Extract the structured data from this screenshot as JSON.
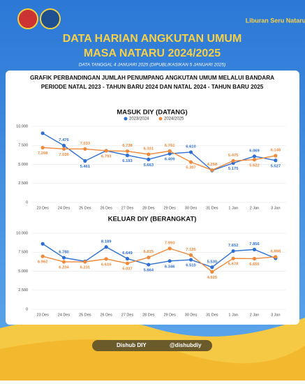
{
  "header": {
    "logo": "Liburan Seru Nataru",
    "title": "DATA HARIAN ANGKUTAN UMUM",
    "subtitle": "MASA NATARU 2024/2025",
    "date": "DATA TANGGAL 4 JANUARI 2025 (DIPUBLIKASIKAN 5 JANUARI 2025)"
  },
  "panel_title": [
    "GRAFIK PERBANDINGAN JUMLAH PENUMPANG ANGKUTAN UMUM MELALUI BANDARA",
    "PERIODE NATAL 2023 - TAHUN BARU 2024 DAN NATAL 2024 - TAHUN BARU 2025"
  ],
  "footer": {
    "facebook_youtube": "Dishub DIY",
    "twitter_instagram": "@dishubdiy"
  },
  "chart_data": [
    {
      "type": "line",
      "title": "MASUK DIY (DATANG)",
      "categories": [
        "23 Des",
        "24 Des",
        "25 Des",
        "26 Des",
        "27 Des",
        "28 Des",
        "29 Des",
        "30 Des",
        "31 Des",
        "1 Jan",
        "2 Jan",
        "3 Jan"
      ],
      "series": [
        {
          "name": "2023/2024",
          "color": "#2e6fd3",
          "values": [
            9100,
            7476,
            5461,
            6800,
            6193,
            5663,
            6409,
            6610,
            4200,
            5175,
            6069,
            5527
          ],
          "value_labels": [
            null,
            "7.476",
            "5.461",
            null,
            "6.193",
            "5.663",
            "6.409",
            "6.610",
            null,
            "5.175",
            "6.069",
            "5.527"
          ]
        },
        {
          "name": "2024/2025",
          "color": "#f0893a",
          "values": [
            7208,
            7036,
            7033,
            6793,
            6738,
            6331,
            6761,
            5307,
            4258,
            5475,
            5622,
            6148
          ],
          "value_labels": [
            "7.208",
            "7.036",
            "7.033",
            "6.793",
            "6.738",
            "6.331",
            "6.761",
            "5.307",
            "4.258",
            "5.475",
            "5.622",
            "6.148"
          ]
        }
      ],
      "ylim": [
        0,
        10000
      ],
      "yticks": [
        0,
        {
          "value": 2500,
          "label": "2.500"
        },
        {
          "value": 5000,
          "label": "5.000"
        },
        {
          "value": 7500,
          "label": "7.500"
        },
        {
          "value": 10000,
          "label": "10.000"
        }
      ],
      "grid": true
    },
    {
      "type": "line",
      "title": "KELUAR DIY (BERANGKAT)",
      "categories": [
        "23 Des",
        "24 Des",
        "25 Des",
        "26 Des",
        "27 Des",
        "28 Des",
        "29 Des",
        "30 Des",
        "31 Des",
        "1 Jan",
        "2 Jan",
        "3 Jan"
      ],
      "series": [
        {
          "color": "#2e6fd3",
          "values": [
            8600,
            6780,
            6300,
            8189,
            6649,
            5864,
            6346,
            6510,
            5530,
            7652,
            7856,
            6700
          ],
          "value_labels": [
            null,
            "6.780",
            null,
            "8.189",
            "6.649",
            "5.864",
            "6.346",
            "6.510",
            "5.530",
            "7.652",
            "7.856",
            null
          ]
        },
        {
          "color": "#f0893a",
          "values": [
            6962,
            6234,
            6231,
            6616,
            6037,
            6815,
            7993,
            7126,
            4925,
            6678,
            6655,
            6898
          ],
          "value_labels": [
            "6.962",
            "6.234",
            "6.231",
            "6.616",
            "6.037",
            "6.815",
            "7.993",
            "7.126",
            "4.925",
            "6.678",
            "6.655",
            "6.898"
          ]
        }
      ],
      "ylim": [
        0,
        10000
      ],
      "yticks": [
        0,
        {
          "value": 2500,
          "label": "2.500"
        },
        {
          "value": 5000,
          "label": "5.000"
        },
        {
          "value": 7500,
          "label": "7.500"
        },
        {
          "value": 10000,
          "label": "10.000"
        }
      ],
      "grid": true
    }
  ]
}
